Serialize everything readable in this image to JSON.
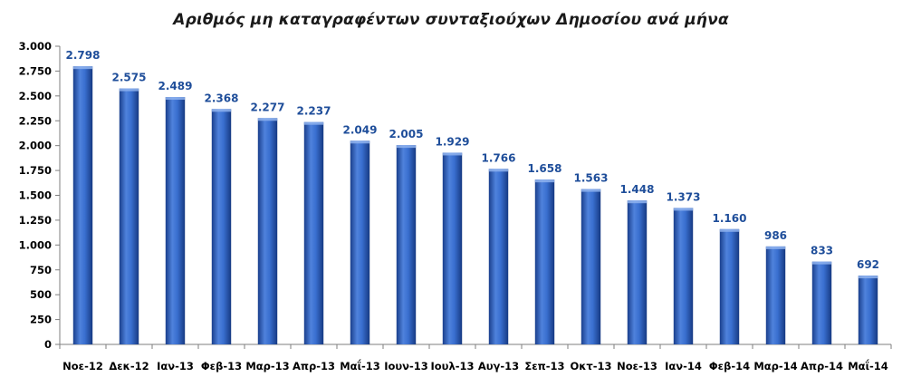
{
  "chart_data": {
    "type": "bar",
    "title": "Αριθμός μη καταγραφέντων συνταξιούχων Δημοσίου ανά μήνα",
    "xlabel": "",
    "ylabel": "",
    "categories": [
      "Νοε-12",
      "Δεκ-12",
      "Ιαν-13",
      "Φεβ-13",
      "Μαρ-13",
      "Απρ-13",
      "Μαΐ-13",
      "Ιουν-13",
      "Ιουλ-13",
      "Αυγ-13",
      "Σεπ-13",
      "Οκτ-13",
      "Νοε-13",
      "Ιαν-14",
      "Φεβ-14",
      "Μαρ-14",
      "Απρ-14",
      "Μαΐ-14"
    ],
    "values": [
      2798,
      2575,
      2489,
      2368,
      2277,
      2237,
      2049,
      2005,
      1929,
      1766,
      1658,
      1563,
      1448,
      1373,
      1160,
      986,
      833,
      692
    ],
    "value_labels": [
      "2.798",
      "2.575",
      "2.489",
      "2.368",
      "2.277",
      "2.237",
      "2.049",
      "2.005",
      "1.929",
      "1.766",
      "1.658",
      "1.563",
      "1.448",
      "1.373",
      "1.160",
      "986",
      "833",
      "692"
    ],
    "y_ticks": [
      0,
      250,
      500,
      750,
      1000,
      1250,
      1500,
      1750,
      2000,
      2250,
      2500,
      2750,
      3000
    ],
    "y_tick_labels": [
      "0",
      "250",
      "500",
      "750",
      "1.000",
      "1.250",
      "1.500",
      "1.750",
      "2.000",
      "2.250",
      "2.500",
      "2.750",
      "3.000"
    ],
    "ylim": [
      0,
      3000
    ],
    "grid": false,
    "legend": "none",
    "colors": {
      "bar_light": "#6f9be6",
      "bar_mid": "#2f66c9",
      "bar_dark": "#1a3f8c",
      "data_label": "#1f4e9a",
      "axis": "#7f7f7f"
    }
  }
}
